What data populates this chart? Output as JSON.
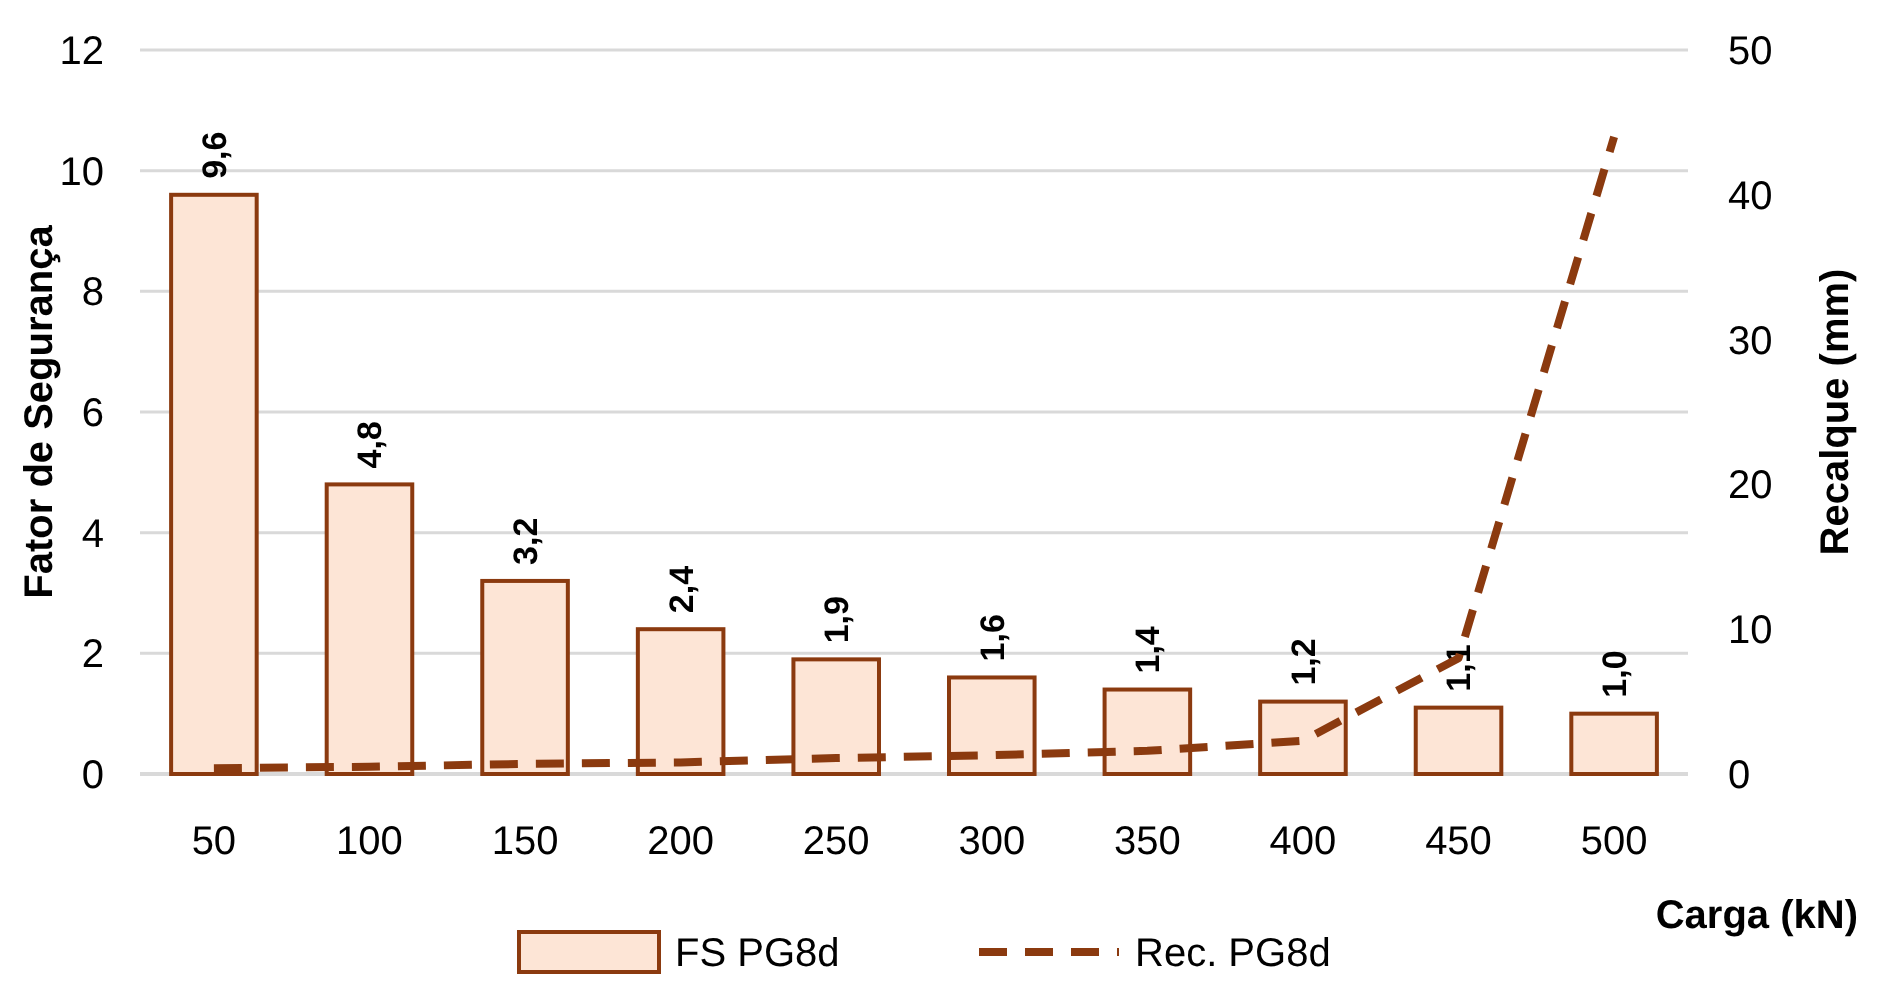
{
  "chart_data": {
    "type": "bar",
    "xlabel": "Carga (kN)",
    "ylabel": "Fator de Segurança",
    "y2label": "Recalque (mm)",
    "categories": [
      "50",
      "100",
      "150",
      "200",
      "250",
      "300",
      "350",
      "400",
      "450",
      "500"
    ],
    "series": [
      {
        "name": "FS PG8d",
        "color": "#fde5d6",
        "values": [
          9.6,
          4.8,
          3.2,
          2.4,
          1.9,
          1.6,
          1.4,
          1.2,
          1.1,
          1.0
        ],
        "value_labels": [
          "9,6",
          "4,8",
          "3,2",
          "2,4",
          "1,9",
          "1,6",
          "1,4",
          "1,2",
          "1,1",
          "1,0"
        ]
      },
      {
        "name": "Rec. PG8d",
        "type": "line",
        "axis": "y2",
        "color": "#8b3a0f",
        "line_style": "dashed",
        "values": [
          0.4,
          0.5,
          0.7,
          0.8,
          1.1,
          1.3,
          1.6,
          2.3,
          8,
          44
        ]
      }
    ],
    "ylim": [
      0,
      12
    ],
    "yticks": [
      0,
      2,
      4,
      6,
      8,
      10,
      12
    ],
    "y2lim": [
      0,
      50
    ],
    "y2ticks": [
      0,
      10,
      20,
      30,
      40,
      50
    ],
    "grid": "y",
    "legend": "bottom"
  }
}
